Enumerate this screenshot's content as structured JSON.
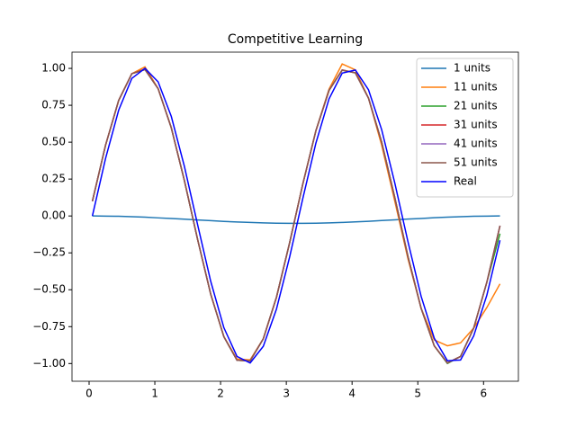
{
  "chart_data": {
    "type": "line",
    "title": "Competitive Learning",
    "x": [
      0.05,
      0.25,
      0.45,
      0.65,
      0.85,
      1.05,
      1.25,
      1.45,
      1.65,
      1.85,
      2.05,
      2.25,
      2.45,
      2.65,
      2.85,
      3.05,
      3.25,
      3.45,
      3.65,
      3.85,
      4.05,
      4.25,
      4.45,
      4.65,
      4.85,
      5.05,
      5.25,
      5.45,
      5.65,
      5.85,
      6.05,
      6.25
    ],
    "series": [
      {
        "name": "1 units",
        "color": "#1f77b4",
        "values": [
          0,
          -0.001,
          -0.002,
          -0.005,
          -0.008,
          -0.013,
          -0.017,
          -0.022,
          -0.027,
          -0.032,
          -0.037,
          -0.041,
          -0.044,
          -0.047,
          -0.049,
          -0.05,
          -0.05,
          -0.049,
          -0.047,
          -0.044,
          -0.04,
          -0.036,
          -0.031,
          -0.026,
          -0.021,
          -0.017,
          -0.012,
          -0.008,
          -0.005,
          -0.002,
          -0.001,
          0
        ]
      },
      {
        "name": "11 units",
        "color": "#ff7f0e",
        "values": [
          0.1,
          0.479,
          0.783,
          0.964,
          1.01,
          0.863,
          0.598,
          0.239,
          -0.158,
          -0.53,
          -0.818,
          -0.97,
          -0.975,
          -0.832,
          -0.551,
          -0.182,
          0.215,
          0.578,
          0.86,
          1.03,
          0.99,
          0.798,
          0.48,
          0.1,
          -0.29,
          -0.625,
          -0.84,
          -0.88,
          -0.86,
          -0.76,
          -0.62,
          -0.46
        ]
      },
      {
        "name": "21 units",
        "color": "#2ca02c",
        "values": [
          0.1,
          0.479,
          0.783,
          0.964,
          0.992,
          0.863,
          0.598,
          0.239,
          -0.158,
          -0.53,
          -0.818,
          -0.978,
          -0.982,
          -0.832,
          -0.551,
          -0.182,
          0.215,
          0.578,
          0.851,
          0.988,
          0.97,
          0.798,
          0.501,
          0.124,
          -0.274,
          -0.625,
          -0.88,
          -1.0,
          -0.952,
          -0.76,
          -0.449,
          -0.12
        ]
      },
      {
        "name": "31 units",
        "color": "#d62728",
        "values": [
          0.1,
          0.479,
          0.783,
          0.964,
          0.995,
          0.863,
          0.598,
          0.239,
          -0.158,
          -0.53,
          -0.818,
          -0.978,
          -0.982,
          -0.832,
          -0.551,
          -0.182,
          0.215,
          0.578,
          0.851,
          0.99,
          0.97,
          0.798,
          0.501,
          0.124,
          -0.274,
          -0.625,
          -0.88,
          -0.996,
          -0.952,
          -0.76,
          -0.449,
          -0.066
        ]
      },
      {
        "name": "41 units",
        "color": "#9467bd",
        "values": [
          0.1,
          0.479,
          0.783,
          0.964,
          0.992,
          0.863,
          0.598,
          0.239,
          -0.158,
          -0.53,
          -0.818,
          -0.978,
          -0.982,
          -0.832,
          -0.551,
          -0.182,
          0.215,
          0.578,
          0.851,
          0.988,
          0.97,
          0.798,
          0.501,
          0.124,
          -0.274,
          -0.625,
          -0.88,
          -0.996,
          -0.952,
          -0.76,
          -0.449,
          -0.066
        ]
      },
      {
        "name": "51 units",
        "color": "#8c564b",
        "values": [
          0.1,
          0.479,
          0.783,
          0.964,
          0.992,
          0.863,
          0.598,
          0.239,
          -0.158,
          -0.53,
          -0.818,
          -0.978,
          -0.982,
          -0.832,
          -0.551,
          -0.182,
          0.215,
          0.578,
          0.851,
          0.988,
          0.97,
          0.798,
          0.501,
          0.124,
          -0.274,
          -0.625,
          -0.88,
          -0.996,
          -0.952,
          -0.76,
          -0.449,
          -0.066
        ]
      },
      {
        "name": "Real",
        "color": "#0000ff",
        "values": [
          0,
          0.389,
          0.717,
          0.932,
          1.0,
          0.909,
          0.675,
          0.335,
          -0.058,
          -0.443,
          -0.757,
          -0.952,
          -0.996,
          -0.883,
          -0.631,
          -0.279,
          0.117,
          0.494,
          0.794,
          0.968,
          0.989,
          0.855,
          0.585,
          0.223,
          -0.174,
          -0.544,
          -0.828,
          -0.981,
          -0.976,
          -0.813,
          -0.537,
          -0.165
        ]
      }
    ],
    "xlim": [
      -0.26,
      6.53
    ],
    "ylim": [
      -1.12,
      1.11
    ],
    "xticks": [
      0,
      1,
      2,
      3,
      4,
      5,
      6
    ],
    "yticks": [
      {
        "value": -1,
        "label": "−1.00"
      },
      {
        "value": -0.75,
        "label": "−0.75"
      },
      {
        "value": -0.5,
        "label": "−0.50"
      },
      {
        "value": -0.25,
        "label": "−0.25"
      },
      {
        "value": 0,
        "label": "0.00"
      },
      {
        "value": 0.25,
        "label": "0.25"
      },
      {
        "value": 0.5,
        "label": "0.50"
      },
      {
        "value": 0.75,
        "label": "0.75"
      },
      {
        "value": 1,
        "label": "1.00"
      }
    ],
    "legend": "upper right"
  }
}
